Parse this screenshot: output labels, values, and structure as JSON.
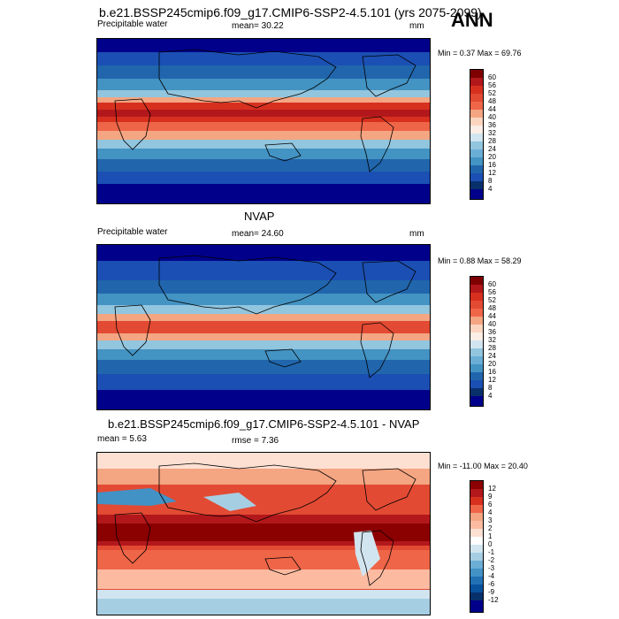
{
  "header": {
    "title": "b.e21.BSSP245cmip6.f09_g17.CMIP6-SSP2-4.5.101 (yrs 2075-2099)",
    "season": "ANN"
  },
  "panels": [
    {
      "id": "model",
      "heading": "",
      "left_label": "Precipitable water",
      "center_label": "mean=  30.22",
      "units": "mm",
      "minmax": "Min =   0.37 Max =  69.76",
      "colorbar_levels": [
        "60",
        "56",
        "52",
        "48",
        "44",
        "40",
        "36",
        "32",
        "28",
        "24",
        "20",
        "16",
        "12",
        "8",
        "4"
      ],
      "colors": [
        "#7f0000",
        "#b2181b",
        "#d7301f",
        "#e34a33",
        "#ef6548",
        "#f4a582",
        "#fcd5c0",
        "#fbeee6",
        "#d1e5f0",
        "#92c5de",
        "#6aaed6",
        "#4393c3",
        "#2166ac",
        "#1b4fb3",
        "#08306b",
        "#00008b"
      ]
    },
    {
      "id": "obs",
      "heading": "NVAP",
      "left_label": "Precipitable water",
      "center_label": "mean=  24.60",
      "units": "mm",
      "minmax": "Min =   0.88 Max =  58.29",
      "colorbar_levels": [
        "60",
        "56",
        "52",
        "48",
        "44",
        "40",
        "36",
        "32",
        "28",
        "24",
        "20",
        "16",
        "12",
        "8",
        "4"
      ],
      "colors": [
        "#7f0000",
        "#b2181b",
        "#d7301f",
        "#e34a33",
        "#ef6548",
        "#f4a582",
        "#fcd5c0",
        "#fbeee6",
        "#d1e5f0",
        "#92c5de",
        "#6aaed6",
        "#4393c3",
        "#2166ac",
        "#1b4fb3",
        "#08306b",
        "#00008b"
      ]
    },
    {
      "id": "diff",
      "heading": "b.e21.BSSP245cmip6.f09_g17.CMIP6-SSP2-4.5.101 - NVAP",
      "left_label": "mean =   5.63",
      "center_label": "rmse =   7.36",
      "units": "",
      "minmax": "Min = -11.00 Max =  20.40",
      "colorbar_levels": [
        "12",
        "9",
        "6",
        "4",
        "3",
        "2",
        "1",
        "0",
        "-1",
        "-2",
        "-3",
        "-4",
        "-6",
        "-9",
        "-12"
      ],
      "colors": [
        "#8b0000",
        "#b2181b",
        "#d7301f",
        "#ef6548",
        "#f4a582",
        "#fcbba1",
        "#fde0d2",
        "#ffffff",
        "#d1e5f0",
        "#a6cee3",
        "#6baed6",
        "#4292c6",
        "#2171b5",
        "#08519c",
        "#08306b",
        "#00008b"
      ]
    }
  ]
}
